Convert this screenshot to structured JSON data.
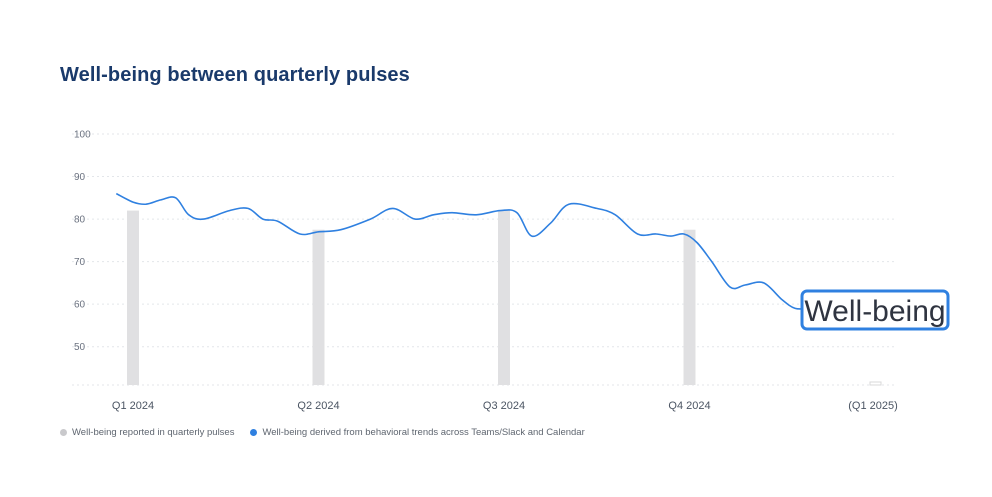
{
  "title": "Well-being between quarterly pulses",
  "callout": "Well-being",
  "legend": {
    "pulse_label": "Well-being reported in quarterly pulses",
    "trend_label": "Well-being derived from behavioral trends across Teams/Slack and Calendar",
    "pulse_color": "#c9c9cc",
    "trend_color": "#2f80e0"
  },
  "chart_data": {
    "type": "bar",
    "title": "Well-being between quarterly pulses",
    "categories": [
      "Q1 2024",
      "Q2 2024",
      "Q3 2024",
      "Q4 2024",
      "(Q1 2025)"
    ],
    "y_ticks": [
      50,
      60,
      70,
      80,
      90,
      100
    ],
    "ylim": [
      41,
      100
    ],
    "grid": true,
    "legend_position": "bottom-left",
    "series": [
      {
        "name": "Well-being reported in quarterly pulses",
        "type": "bar",
        "values": [
          82,
          77.5,
          82,
          77.5,
          null
        ]
      },
      {
        "name": "Well-being derived from behavioral trends across Teams/Slack and Calendar",
        "type": "line",
        "points": [
          [
            -0.09,
            86
          ],
          [
            0.0,
            84
          ],
          [
            0.07,
            83.5
          ],
          [
            0.15,
            84.5
          ],
          [
            0.23,
            85
          ],
          [
            0.3,
            81
          ],
          [
            0.38,
            80
          ],
          [
            0.52,
            82
          ],
          [
            0.62,
            82.5
          ],
          [
            0.7,
            80
          ],
          [
            0.78,
            79.5
          ],
          [
            0.9,
            76.5
          ],
          [
            1.0,
            77
          ],
          [
            1.12,
            77.5
          ],
          [
            1.28,
            80
          ],
          [
            1.4,
            82.5
          ],
          [
            1.52,
            80
          ],
          [
            1.62,
            81
          ],
          [
            1.72,
            81.5
          ],
          [
            1.85,
            81
          ],
          [
            1.98,
            82
          ],
          [
            2.07,
            81.5
          ],
          [
            2.15,
            76
          ],
          [
            2.25,
            79
          ],
          [
            2.35,
            83.5
          ],
          [
            2.5,
            82.5
          ],
          [
            2.6,
            81
          ],
          [
            2.72,
            76.5
          ],
          [
            2.82,
            76.5
          ],
          [
            2.9,
            76
          ],
          [
            2.97,
            76.5
          ],
          [
            3.04,
            74.5
          ],
          [
            3.12,
            70
          ],
          [
            3.22,
            64
          ],
          [
            3.3,
            64.5
          ],
          [
            3.4,
            65
          ],
          [
            3.5,
            61
          ],
          [
            3.57,
            59
          ],
          [
            3.64,
            59
          ]
        ]
      }
    ]
  }
}
